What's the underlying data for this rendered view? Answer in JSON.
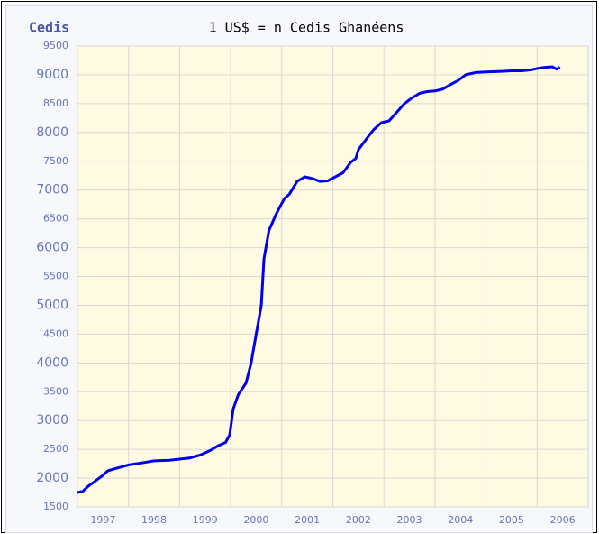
{
  "chart_data": {
    "type": "line",
    "title": "1 US$ = n Cedis Ghanéens",
    "y_label": "Cedis",
    "x": [
      1997.0,
      1997.1,
      1997.2,
      1997.35,
      1997.5,
      1997.6,
      1997.8,
      1998.0,
      1998.3,
      1998.5,
      1998.8,
      1999.0,
      1999.2,
      1999.4,
      1999.6,
      1999.75,
      1999.9,
      1999.98,
      2000.05,
      2000.15,
      2000.3,
      2000.4,
      2000.5,
      2000.6,
      2000.65,
      2000.75,
      2000.9,
      2001.05,
      2001.15,
      2001.3,
      2001.45,
      2001.6,
      2001.75,
      2001.9,
      2002.05,
      2002.2,
      2002.35,
      2002.45,
      2002.5,
      2002.65,
      2002.8,
      2002.95,
      2003.1,
      2003.25,
      2003.4,
      2003.55,
      2003.7,
      2003.85,
      2004.0,
      2004.15,
      2004.3,
      2004.45,
      2004.6,
      2004.8,
      2005.0,
      2005.3,
      2005.5,
      2005.7,
      2005.9,
      2006.0,
      2006.15,
      2006.3,
      2006.38,
      2006.45
    ],
    "series": [
      {
        "name": "Cedis",
        "color": "#0000ee",
        "values": [
          1750,
          1770,
          1850,
          1950,
          2050,
          2130,
          2180,
          2230,
          2270,
          2300,
          2310,
          2330,
          2350,
          2400,
          2480,
          2560,
          2620,
          2750,
          3200,
          3450,
          3650,
          4000,
          4500,
          5000,
          5800,
          6300,
          6600,
          6850,
          6930,
          7150,
          7230,
          7200,
          7150,
          7160,
          7230,
          7300,
          7480,
          7550,
          7700,
          7880,
          8050,
          8170,
          8200,
          8350,
          8500,
          8600,
          8680,
          8710,
          8720,
          8750,
          8830,
          8900,
          9000,
          9040,
          9050,
          9060,
          9070,
          9070,
          9090,
          9110,
          9130,
          9140,
          9100,
          9130
        ]
      }
    ],
    "xlim": [
      1997,
      2007
    ],
    "xticks": [
      1997,
      1998,
      1999,
      2000,
      2001,
      2002,
      2003,
      2004,
      2005,
      2006
    ],
    "ylim": [
      1500,
      9500
    ],
    "yticks": [
      1500,
      2000,
      2500,
      3000,
      3500,
      4000,
      4500,
      5000,
      5500,
      6000,
      6500,
      7000,
      7500,
      8000,
      8500,
      9000,
      9500
    ],
    "grid": true,
    "background": "#fffbe3"
  }
}
